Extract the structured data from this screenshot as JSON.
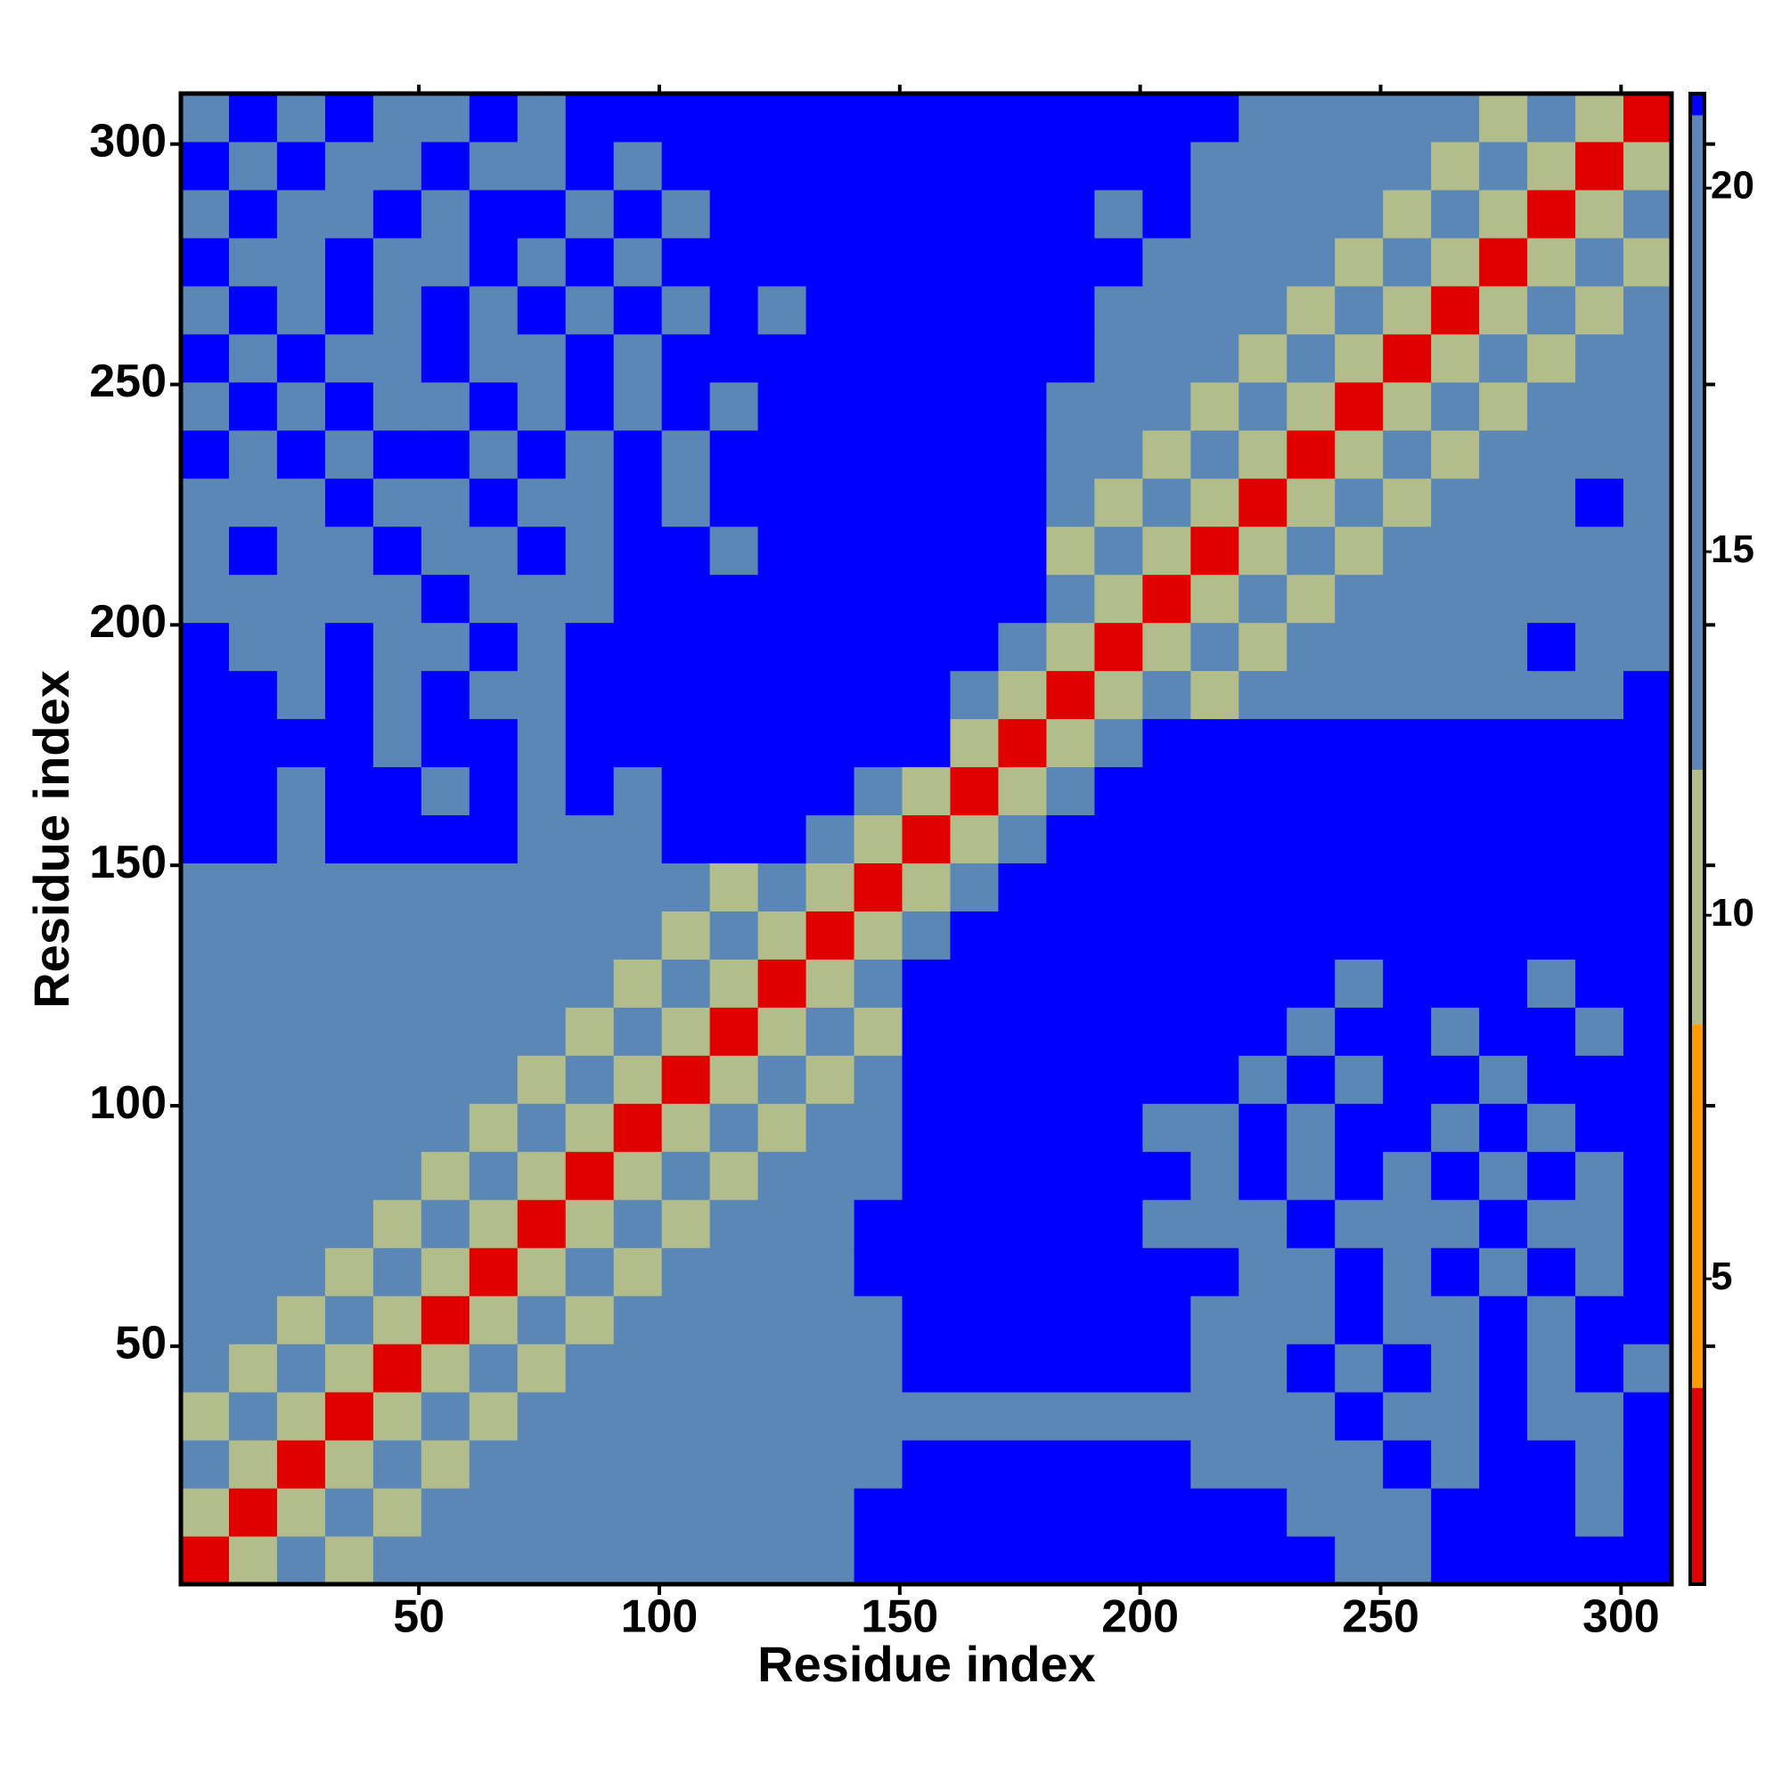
{
  "chart_data": {
    "type": "heatmap",
    "x_label": "Residue index",
    "y_label": "Residue index",
    "xlim": [
      0.5,
      310.5
    ],
    "ylim": [
      0.5,
      310.5
    ],
    "xticks": [
      50,
      100,
      150,
      200,
      250,
      300
    ],
    "yticks": [
      50,
      100,
      150,
      200,
      250,
      300
    ],
    "x": [
      5.5,
      15.5,
      25.5,
      35.5,
      45.5,
      55.5,
      65.5,
      75.5,
      85.5,
      95.5,
      105.5,
      115.5,
      125.5,
      135.5,
      145.5,
      155.5,
      165.5,
      175.5,
      185.5,
      195.5,
      205.5,
      215.5,
      225.5,
      235.5,
      245.5,
      255.5,
      265.5,
      275.5,
      285.5,
      295.5,
      305.5
    ],
    "y": [
      5.5,
      15.5,
      25.5,
      35.5,
      45.5,
      55.5,
      65.5,
      75.5,
      85.5,
      95.5,
      105.5,
      115.5,
      125.5,
      135.5,
      145.5,
      155.5,
      165.5,
      175.5,
      185.5,
      195.5,
      205.5,
      215.5,
      225.5,
      235.5,
      245.5,
      255.5,
      265.5,
      275.5,
      285.5,
      295.5,
      305.5
    ],
    "z": [
      [
        3,
        10,
        18,
        11,
        18,
        18,
        18,
        18,
        18,
        18,
        18,
        18,
        18,
        18,
        21.2,
        21.2,
        21.2,
        21.2,
        21.2,
        21.2,
        21.2,
        21.2,
        21.2,
        21.2,
        18,
        18,
        21.2,
        21.2,
        21.2,
        21.2,
        21.2
      ],
      [
        10,
        3,
        10,
        18,
        11,
        18,
        18,
        18,
        18,
        18,
        18,
        18,
        18,
        18,
        21.2,
        21.2,
        21.2,
        21.2,
        21.2,
        21.2,
        21.2,
        21.2,
        21.2,
        18,
        18,
        18,
        21.2,
        21.2,
        21.2,
        18,
        21.2
      ],
      [
        18,
        10,
        3,
        10,
        18,
        11,
        18,
        18,
        18,
        18,
        18,
        18,
        18,
        18,
        18,
        21.2,
        21.2,
        21.2,
        21.2,
        21.2,
        21.2,
        18,
        18,
        18,
        18,
        21.2,
        18,
        21.2,
        21.2,
        18,
        21.2
      ],
      [
        11,
        18,
        10,
        3,
        10,
        18,
        11,
        18,
        18,
        18,
        18,
        18,
        18,
        18,
        18,
        18,
        18,
        18,
        18,
        18,
        18,
        18,
        18,
        18,
        21.2,
        18,
        18,
        21.2,
        18,
        18,
        21.2
      ],
      [
        18,
        11,
        18,
        10,
        3,
        10,
        18,
        11,
        18,
        18,
        18,
        18,
        18,
        18,
        18,
        21.2,
        21.2,
        21.2,
        21.2,
        21.2,
        21.2,
        18,
        18,
        21.2,
        18,
        21.2,
        18,
        21.2,
        18,
        21.2,
        18
      ],
      [
        18,
        18,
        11,
        18,
        10,
        3,
        10,
        18,
        11,
        18,
        18,
        18,
        18,
        18,
        18,
        21.2,
        21.2,
        21.2,
        21.2,
        21.2,
        21.2,
        18,
        18,
        18,
        21.2,
        18,
        18,
        21.2,
        18,
        21.2,
        21.2
      ],
      [
        18,
        18,
        18,
        11,
        18,
        10,
        3,
        10,
        18,
        11,
        18,
        18,
        18,
        18,
        21.2,
        21.2,
        21.2,
        21.2,
        21.2,
        21.2,
        21.2,
        21.2,
        18,
        18,
        21.2,
        18,
        21.2,
        18,
        21.2,
        18,
        21.2
      ],
      [
        18,
        18,
        18,
        18,
        11,
        18,
        10,
        3,
        10,
        18,
        11,
        18,
        18,
        18,
        21.2,
        21.2,
        21.2,
        21.2,
        21.2,
        21.2,
        18,
        18,
        18,
        21.2,
        18,
        18,
        18,
        21.2,
        18,
        18,
        21.2
      ],
      [
        18,
        18,
        18,
        18,
        18,
        11,
        18,
        10,
        3,
        10,
        18,
        11,
        18,
        18,
        18,
        21.2,
        21.2,
        21.2,
        21.2,
        21.2,
        21.2,
        18,
        21.2,
        18,
        21.2,
        18,
        21.2,
        18,
        21.2,
        18,
        21.2
      ],
      [
        18,
        18,
        18,
        18,
        18,
        18,
        11,
        18,
        10,
        3,
        10,
        18,
        11,
        18,
        18,
        21.2,
        21.2,
        21.2,
        21.2,
        21.2,
        18,
        18,
        21.2,
        18,
        21.2,
        21.2,
        18,
        21.2,
        18,
        21.2,
        21.2
      ],
      [
        18,
        18,
        18,
        18,
        18,
        18,
        18,
        11,
        18,
        10,
        3,
        10,
        18,
        11,
        18,
        21.2,
        21.2,
        21.2,
        21.2,
        21.2,
        21.2,
        21.2,
        18,
        21.2,
        18,
        21.2,
        21.2,
        18,
        21.2,
        21.2,
        21.2
      ],
      [
        18,
        18,
        18,
        18,
        18,
        18,
        18,
        18,
        11,
        18,
        10,
        3,
        10,
        18,
        11,
        21.2,
        21.2,
        21.2,
        21.2,
        21.2,
        21.2,
        21.2,
        21.2,
        18,
        21.2,
        21.2,
        18,
        21.2,
        21.2,
        18,
        21.2
      ],
      [
        18,
        18,
        18,
        18,
        18,
        18,
        18,
        18,
        18,
        11,
        18,
        10,
        3,
        10,
        18,
        21.2,
        21.2,
        21.2,
        21.2,
        21.2,
        21.2,
        21.2,
        21.2,
        21.2,
        18,
        21.2,
        21.2,
        21.2,
        18,
        21.2,
        21.2
      ],
      [
        18,
        18,
        18,
        18,
        18,
        18,
        18,
        18,
        18,
        18,
        11,
        18,
        10,
        3,
        10,
        18,
        21.2,
        21.2,
        21.2,
        21.2,
        21.2,
        21.2,
        21.2,
        21.2,
        21.2,
        21.2,
        21.2,
        21.2,
        21.2,
        21.2,
        21.2
      ],
      [
        18,
        18,
        18,
        18,
        18,
        18,
        18,
        18,
        18,
        18,
        18,
        11,
        18,
        10,
        3,
        10,
        18,
        21.2,
        21.2,
        21.2,
        21.2,
        21.2,
        21.2,
        21.2,
        21.2,
        21.2,
        21.2,
        21.2,
        21.2,
        21.2,
        21.2
      ],
      [
        21.2,
        21.2,
        18,
        21.2,
        21.2,
        21.2,
        21.2,
        18,
        18,
        18,
        21.2,
        21.2,
        21.2,
        18,
        10,
        3,
        10,
        18,
        21.2,
        21.2,
        21.2,
        21.2,
        21.2,
        21.2,
        21.2,
        21.2,
        21.2,
        21.2,
        21.2,
        21.2,
        21.2
      ],
      [
        21.2,
        21.2,
        18,
        21.2,
        21.2,
        18,
        21.2,
        18,
        21.2,
        18,
        21.2,
        21.2,
        21.2,
        21.2,
        18,
        10,
        3,
        10,
        18,
        21.2,
        21.2,
        21.2,
        21.2,
        21.2,
        21.2,
        21.2,
        21.2,
        21.2,
        21.2,
        21.2,
        21.2
      ],
      [
        21.2,
        21.2,
        21.2,
        21.2,
        18,
        21.2,
        21.2,
        18,
        21.2,
        21.2,
        21.2,
        21.2,
        21.2,
        21.2,
        21.2,
        21.2,
        10,
        3,
        10,
        18,
        21.2,
        21.2,
        21.2,
        21.2,
        21.2,
        21.2,
        21.2,
        21.2,
        21.2,
        21.2,
        21.2
      ],
      [
        21.2,
        21.2,
        18,
        21.2,
        18,
        21.2,
        18,
        18,
        21.2,
        21.2,
        21.2,
        21.2,
        21.2,
        21.2,
        21.2,
        21.2,
        18,
        10,
        3,
        10,
        18,
        11,
        18,
        18,
        18,
        18,
        18,
        18,
        18,
        18,
        21.2
      ],
      [
        21.2,
        18,
        18,
        21.2,
        18,
        18,
        21.2,
        18,
        21.2,
        21.2,
        21.2,
        21.2,
        21.2,
        21.2,
        21.2,
        21.2,
        21.2,
        18,
        10,
        3,
        10,
        18,
        11,
        18,
        18,
        18,
        18,
        18,
        21.2,
        18,
        18
      ],
      [
        18,
        18,
        18,
        18,
        18,
        21.2,
        18,
        18,
        18,
        21.2,
        21.2,
        21.2,
        21.2,
        21.2,
        21.2,
        21.2,
        21.2,
        21.2,
        18,
        10,
        3,
        10,
        18,
        11,
        18,
        18,
        18,
        18,
        18,
        18,
        18
      ],
      [
        18,
        21.2,
        18,
        18,
        21.2,
        18,
        18,
        21.2,
        18,
        21.2,
        21.2,
        18,
        21.2,
        21.2,
        21.2,
        21.2,
        21.2,
        21.2,
        11,
        18,
        10,
        3,
        10,
        18,
        11,
        18,
        18,
        18,
        18,
        18,
        18
      ],
      [
        18,
        18,
        18,
        21.2,
        18,
        18,
        21.2,
        18,
        18,
        21.2,
        18,
        21.2,
        21.2,
        21.2,
        21.2,
        21.2,
        21.2,
        21.2,
        18,
        11,
        18,
        10,
        3,
        10,
        18,
        11,
        18,
        18,
        18,
        21.2,
        18
      ],
      [
        21.2,
        18,
        21.2,
        18,
        21.2,
        21.2,
        18,
        21.2,
        18,
        21.2,
        18,
        21.2,
        21.2,
        21.2,
        21.2,
        21.2,
        21.2,
        21.2,
        18,
        18,
        11,
        18,
        10,
        3,
        10,
        18,
        11,
        18,
        18,
        18,
        18
      ],
      [
        18,
        21.2,
        18,
        21.2,
        18,
        18,
        21.2,
        18,
        21.2,
        18,
        21.2,
        18,
        21.2,
        21.2,
        21.2,
        21.2,
        21.2,
        21.2,
        18,
        18,
        18,
        11,
        18,
        10,
        3,
        10,
        18,
        11,
        18,
        18,
        18
      ],
      [
        21.2,
        18,
        21.2,
        18,
        18,
        21.2,
        18,
        18,
        21.2,
        18,
        21.2,
        21.2,
        21.2,
        21.2,
        21.2,
        21.2,
        21.2,
        21.2,
        21.2,
        18,
        18,
        18,
        11,
        18,
        10,
        3,
        10,
        18,
        11,
        18,
        18
      ],
      [
        18,
        21.2,
        18,
        21.2,
        18,
        21.2,
        18,
        21.2,
        18,
        21.2,
        18,
        21.2,
        18,
        21.2,
        21.2,
        21.2,
        21.2,
        21.2,
        21.2,
        18,
        18,
        18,
        18,
        11,
        18,
        10,
        3,
        10,
        18,
        11,
        18
      ],
      [
        21.2,
        18,
        18,
        21.2,
        18,
        18,
        21.2,
        18,
        21.2,
        18,
        21.2,
        21.2,
        21.2,
        21.2,
        21.2,
        21.2,
        21.2,
        21.2,
        21.2,
        21.2,
        18,
        18,
        18,
        18,
        11,
        18,
        10,
        3,
        10,
        18,
        11
      ],
      [
        18,
        21.2,
        18,
        18,
        21.2,
        18,
        21.2,
        21.2,
        18,
        21.2,
        18,
        21.2,
        21.2,
        21.2,
        21.2,
        21.2,
        21.2,
        21.2,
        21.2,
        18,
        21.2,
        18,
        18,
        18,
        18,
        11,
        18,
        10,
        3,
        10,
        18
      ],
      [
        21.2,
        18,
        21.2,
        18,
        18,
        21.2,
        18,
        18,
        21.2,
        18,
        21.2,
        21.2,
        21.2,
        21.2,
        21.2,
        21.2,
        21.2,
        21.2,
        21.2,
        21.2,
        21.2,
        18,
        18,
        18,
        18,
        18,
        11,
        18,
        10,
        3,
        10
      ],
      [
        18,
        21.2,
        18,
        21.2,
        18,
        18,
        21.2,
        18,
        21.2,
        21.2,
        21.2,
        21.2,
        21.2,
        21.2,
        21.2,
        21.2,
        21.2,
        21.2,
        21.2,
        21.2,
        21.2,
        21.2,
        18,
        18,
        18,
        18,
        18,
        11,
        18,
        10,
        3
      ]
    ],
    "colorbar": {
      "zlim": [
        0.8,
        21.3
      ],
      "ticks": [
        5,
        10,
        15,
        20
      ],
      "bands": [
        {
          "from": 0.8,
          "to": 3.5,
          "color": "#e00000"
        },
        {
          "from": 3.5,
          "to": 8.5,
          "color": "#ff9a00"
        },
        {
          "from": 8.5,
          "to": 12,
          "color": "#b3bd8c"
        },
        {
          "from": 12,
          "to": 21,
          "color": "#5b87b6"
        },
        {
          "from": 21,
          "to": 21.3,
          "color": "#0000ff"
        }
      ]
    }
  }
}
